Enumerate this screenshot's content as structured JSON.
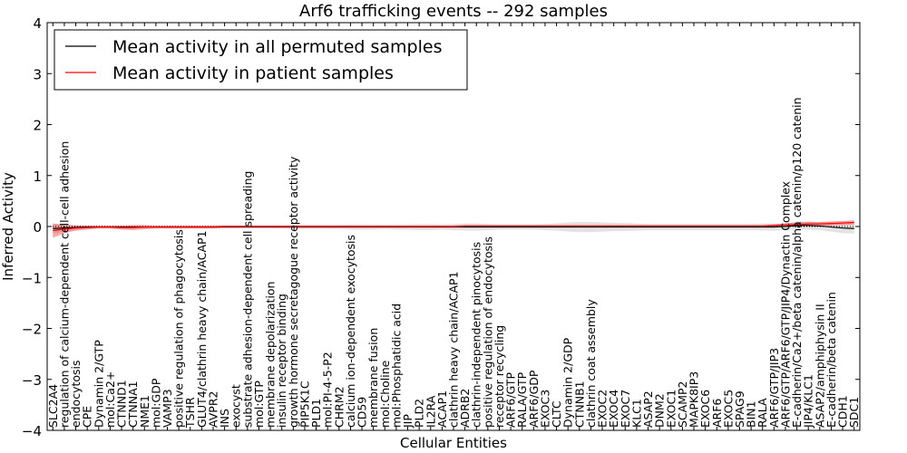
{
  "chart_data": {
    "type": "line",
    "title": "Arf6 trafficking events -- 292 samples",
    "xlabel": "Cellular Entities",
    "ylabel": "Inferred Activity",
    "ylim": [
      -4,
      4
    ],
    "yticks": [
      "4",
      "3",
      "2",
      "1",
      "0",
      "−1",
      "−2",
      "−3",
      "−4"
    ],
    "grid": false,
    "legend_position": "top-left",
    "categories": [
      "SLC2A4",
      "regulation of calcium-dependent cell-cell adhesion",
      "endocytosis",
      "CPE",
      "Dynamin 2/GTP",
      "mol:Ca2+",
      "CTNND1",
      "CTNNA1",
      "NME1",
      "mol:GDP",
      "VAMP3",
      "positive regulation of phagocytosis",
      "TSHR",
      "GLUT4/clathrin heavy chain/ACAP1",
      "AVPR2",
      "INS",
      "exocyst",
      "substrate adhesion-dependent cell spreading",
      "mol:GTP",
      "membrane depolarization",
      "insulin receptor binding",
      "growth hormone secretagogue receptor activity",
      "PIP5K1C",
      "PLD1",
      "mol:PI-4-5-P2",
      "CHRM2",
      "calcium ion-dependent exocytosis",
      "CD59",
      "membrane fusion",
      "mol:Choline",
      "mol:Phosphatidic acid",
      "JIP",
      "PLD2",
      "IL2RA",
      "ACAP1",
      "clathrin heavy chain/ACAP1",
      "ADRB2",
      "clathrin-independent pinocytosis",
      "positive regulation of endocytosis",
      "receptor recycling",
      "ARF6/GTP",
      "RALA/GTP",
      "ARF6/GDP",
      "EXOC3",
      "CLTC",
      "Dynamin 2/GDP",
      "CTNNB1",
      "clathrin coat assembly",
      "EXOC2",
      "EXOC4",
      "EXOC7",
      "KLC1",
      "ASAP2",
      "DNM2",
      "EXOC1",
      "SCAMP2",
      "MAPK8IP3",
      "EXOC6",
      "ARF6",
      "EXOC5",
      "SPAG9",
      "BIN1",
      "RALA",
      "ARF6/GTP/JIP3",
      "ARF6/GTP/ARF6/GTP/JIP4/Dynactin Complex",
      "E-cadherin/Ca2+/beta catenin/alpha catenin/p120 catenin",
      "JIP4/KLC1",
      "ASAP2/amphiphysin II",
      "E-cadherin/beta catenin",
      "CDH1",
      "SDC1"
    ],
    "series": [
      {
        "name": "Mean activity in all permuted samples",
        "color": "#000000",
        "values": [
          -0.04,
          -0.03,
          -0.02,
          -0.01,
          -0.01,
          -0.01,
          -0.01,
          -0.01,
          -0.01,
          -0.01,
          -0.01,
          -0.01,
          -0.01,
          -0.01,
          -0.01,
          -0.01,
          -0.01,
          -0.01,
          -0.01,
          -0.01,
          -0.01,
          -0.01,
          -0.01,
          -0.01,
          -0.01,
          -0.01,
          -0.01,
          -0.01,
          -0.01,
          -0.01,
          -0.01,
          -0.01,
          -0.01,
          -0.01,
          -0.01,
          -0.01,
          -0.01,
          -0.01,
          -0.01,
          -0.01,
          -0.01,
          -0.01,
          -0.01,
          -0.01,
          -0.01,
          -0.01,
          -0.01,
          -0.01,
          -0.01,
          -0.01,
          -0.01,
          -0.01,
          -0.01,
          -0.01,
          -0.01,
          -0.01,
          -0.01,
          -0.01,
          -0.01,
          -0.01,
          -0.01,
          -0.01,
          -0.01,
          -0.01,
          0.0,
          0.02,
          0.02,
          0.01,
          -0.01,
          -0.03,
          -0.04
        ],
        "band": [
          0.1,
          0.07,
          0.05,
          0.03,
          0.03,
          0.03,
          0.03,
          0.03,
          0.03,
          0.03,
          0.03,
          0.03,
          0.03,
          0.03,
          0.03,
          0.03,
          0.03,
          0.03,
          0.03,
          0.03,
          0.03,
          0.04,
          0.04,
          0.04,
          0.04,
          0.04,
          0.05,
          0.05,
          0.05,
          0.04,
          0.05,
          0.05,
          0.06,
          0.06,
          0.05,
          0.06,
          0.07,
          0.07,
          0.06,
          0.05,
          0.05,
          0.05,
          0.05,
          0.06,
          0.07,
          0.09,
          0.1,
          0.1,
          0.09,
          0.08,
          0.08,
          0.07,
          0.06,
          0.06,
          0.06,
          0.06,
          0.06,
          0.06,
          0.06,
          0.06,
          0.06,
          0.06,
          0.07,
          0.07,
          0.07,
          0.08,
          0.08,
          0.08,
          0.09,
          0.1,
          0.1
        ]
      },
      {
        "name": "Mean activity in patient samples",
        "color": "#ff0000",
        "values": [
          -0.08,
          -0.05,
          -0.03,
          -0.02,
          -0.01,
          -0.01,
          -0.02,
          -0.02,
          -0.01,
          -0.01,
          -0.01,
          -0.01,
          -0.01,
          -0.01,
          -0.01,
          0.0,
          0.0,
          0.0,
          0.0,
          0.0,
          0.0,
          0.0,
          0.0,
          0.0,
          0.0,
          0.0,
          0.0,
          0.0,
          0.0,
          0.0,
          0.0,
          0.0,
          0.0,
          0.0,
          0.0,
          0.0,
          0.01,
          0.01,
          0.01,
          0.01,
          0.01,
          0.01,
          0.01,
          0.01,
          0.01,
          0.01,
          0.01,
          0.01,
          0.01,
          0.01,
          0.01,
          0.01,
          0.01,
          0.01,
          0.01,
          0.01,
          0.01,
          0.01,
          0.01,
          0.01,
          0.01,
          0.01,
          0.01,
          0.02,
          0.03,
          0.04,
          0.05,
          0.05,
          0.06,
          0.07,
          0.08
        ],
        "band": [
          0.14,
          0.08,
          0.05,
          0.04,
          0.03,
          0.03,
          0.04,
          0.05,
          0.04,
          0.03,
          0.03,
          0.03,
          0.03,
          0.03,
          0.03,
          0.02,
          0.02,
          0.02,
          0.02,
          0.02,
          0.02,
          0.02,
          0.02,
          0.02,
          0.02,
          0.02,
          0.02,
          0.02,
          0.02,
          0.02,
          0.02,
          0.02,
          0.02,
          0.02,
          0.02,
          0.02,
          0.02,
          0.02,
          0.02,
          0.02,
          0.02,
          0.02,
          0.02,
          0.02,
          0.02,
          0.02,
          0.02,
          0.02,
          0.02,
          0.02,
          0.02,
          0.02,
          0.02,
          0.02,
          0.02,
          0.02,
          0.02,
          0.02,
          0.02,
          0.02,
          0.02,
          0.02,
          0.02,
          0.02,
          0.03,
          0.04,
          0.04,
          0.04,
          0.04,
          0.04,
          0.04
        ]
      }
    ]
  }
}
